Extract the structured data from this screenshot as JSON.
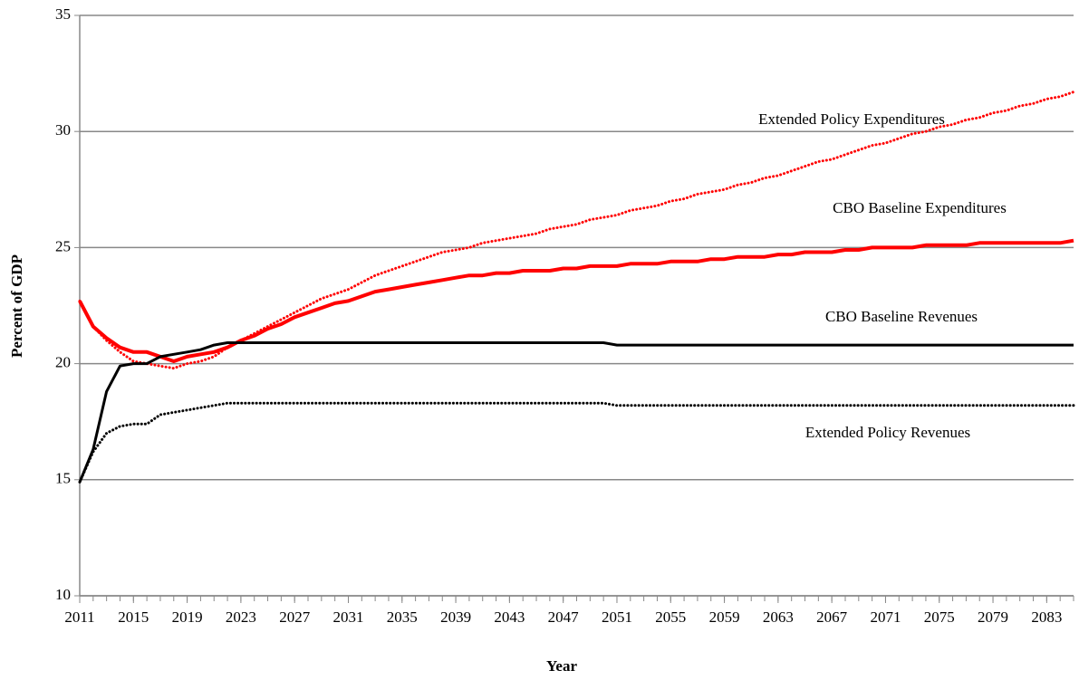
{
  "chart_data": {
    "type": "line",
    "xlabel": "Year",
    "ylabel": "Percent of GDP",
    "x": [
      2011,
      2012,
      2013,
      2014,
      2015,
      2016,
      2017,
      2018,
      2019,
      2020,
      2021,
      2022,
      2023,
      2024,
      2025,
      2026,
      2027,
      2028,
      2029,
      2030,
      2031,
      2032,
      2033,
      2034,
      2035,
      2036,
      2037,
      2038,
      2039,
      2040,
      2041,
      2042,
      2043,
      2044,
      2045,
      2046,
      2047,
      2048,
      2049,
      2050,
      2051,
      2052,
      2053,
      2054,
      2055,
      2056,
      2057,
      2058,
      2059,
      2060,
      2061,
      2062,
      2063,
      2064,
      2065,
      2066,
      2067,
      2068,
      2069,
      2070,
      2071,
      2072,
      2073,
      2074,
      2075,
      2076,
      2077,
      2078,
      2079,
      2080,
      2081,
      2082,
      2083,
      2084,
      2085
    ],
    "xlim": [
      2011,
      2085
    ],
    "xticks": [
      2011,
      2015,
      2019,
      2023,
      2027,
      2031,
      2035,
      2039,
      2043,
      2047,
      2051,
      2055,
      2059,
      2063,
      2067,
      2071,
      2075,
      2079,
      2083
    ],
    "ylim": [
      10,
      35
    ],
    "yticks": [
      10,
      15,
      20,
      25,
      30,
      35
    ],
    "grid": true,
    "series": [
      {
        "name": "Extended Policy Expenditures",
        "color": "#ff0000",
        "style": "dotted",
        "values": [
          22.7,
          21.6,
          21.0,
          20.5,
          20.1,
          20.0,
          19.9,
          19.8,
          20.0,
          20.1,
          20.3,
          20.7,
          21.0,
          21.3,
          21.6,
          21.9,
          22.2,
          22.5,
          22.8,
          23.0,
          23.2,
          23.5,
          23.8,
          24.0,
          24.2,
          24.4,
          24.6,
          24.8,
          24.9,
          25.0,
          25.2,
          25.3,
          25.4,
          25.5,
          25.6,
          25.8,
          25.9,
          26.0,
          26.2,
          26.3,
          26.4,
          26.6,
          26.7,
          26.8,
          27.0,
          27.1,
          27.3,
          27.4,
          27.5,
          27.7,
          27.8,
          28.0,
          28.1,
          28.3,
          28.5,
          28.7,
          28.8,
          29.0,
          29.2,
          29.4,
          29.5,
          29.7,
          29.9,
          30.0,
          30.2,
          30.3,
          30.5,
          30.6,
          30.8,
          30.9,
          31.1,
          31.2,
          31.4,
          31.5,
          31.7
        ]
      },
      {
        "name": "CBO Baseline Expenditures",
        "color": "#ff0000",
        "style": "solid",
        "values": [
          22.7,
          21.6,
          21.1,
          20.7,
          20.5,
          20.5,
          20.3,
          20.1,
          20.3,
          20.4,
          20.5,
          20.7,
          21.0,
          21.2,
          21.5,
          21.7,
          22.0,
          22.2,
          22.4,
          22.6,
          22.7,
          22.9,
          23.1,
          23.2,
          23.3,
          23.4,
          23.5,
          23.6,
          23.7,
          23.8,
          23.8,
          23.9,
          23.9,
          24.0,
          24.0,
          24.0,
          24.1,
          24.1,
          24.2,
          24.2,
          24.2,
          24.3,
          24.3,
          24.3,
          24.4,
          24.4,
          24.4,
          24.5,
          24.5,
          24.6,
          24.6,
          24.6,
          24.7,
          24.7,
          24.8,
          24.8,
          24.8,
          24.9,
          24.9,
          25.0,
          25.0,
          25.0,
          25.0,
          25.1,
          25.1,
          25.1,
          25.1,
          25.2,
          25.2,
          25.2,
          25.2,
          25.2,
          25.2,
          25.2,
          25.3
        ]
      },
      {
        "name": "CBO Baseline Revenues",
        "color": "#000000",
        "style": "solid",
        "values": [
          14.9,
          16.3,
          18.8,
          19.9,
          20.0,
          20.0,
          20.3,
          20.4,
          20.5,
          20.6,
          20.8,
          20.9,
          20.9,
          20.9,
          20.9,
          20.9,
          20.9,
          20.9,
          20.9,
          20.9,
          20.9,
          20.9,
          20.9,
          20.9,
          20.9,
          20.9,
          20.9,
          20.9,
          20.9,
          20.9,
          20.9,
          20.9,
          20.9,
          20.9,
          20.9,
          20.9,
          20.9,
          20.9,
          20.9,
          20.9,
          20.8,
          20.8,
          20.8,
          20.8,
          20.8,
          20.8,
          20.8,
          20.8,
          20.8,
          20.8,
          20.8,
          20.8,
          20.8,
          20.8,
          20.8,
          20.8,
          20.8,
          20.8,
          20.8,
          20.8,
          20.8,
          20.8,
          20.8,
          20.8,
          20.8,
          20.8,
          20.8,
          20.8,
          20.8,
          20.8,
          20.8,
          20.8,
          20.8,
          20.8,
          20.8
        ]
      },
      {
        "name": "Extended Policy Revenues",
        "color": "#000000",
        "style": "dotted",
        "values": [
          14.9,
          16.2,
          17.0,
          17.3,
          17.4,
          17.4,
          17.8,
          17.9,
          18.0,
          18.1,
          18.2,
          18.3,
          18.3,
          18.3,
          18.3,
          18.3,
          18.3,
          18.3,
          18.3,
          18.3,
          18.3,
          18.3,
          18.3,
          18.3,
          18.3,
          18.3,
          18.3,
          18.3,
          18.3,
          18.3,
          18.3,
          18.3,
          18.3,
          18.3,
          18.3,
          18.3,
          18.3,
          18.3,
          18.3,
          18.3,
          18.2,
          18.2,
          18.2,
          18.2,
          18.2,
          18.2,
          18.2,
          18.2,
          18.2,
          18.2,
          18.2,
          18.2,
          18.2,
          18.2,
          18.2,
          18.2,
          18.2,
          18.2,
          18.2,
          18.2,
          18.2,
          18.2,
          18.2,
          18.2,
          18.2,
          18.2,
          18.2,
          18.2,
          18.2,
          18.2,
          18.2,
          18.2,
          18.2,
          18.2,
          18.2
        ]
      }
    ]
  }
}
